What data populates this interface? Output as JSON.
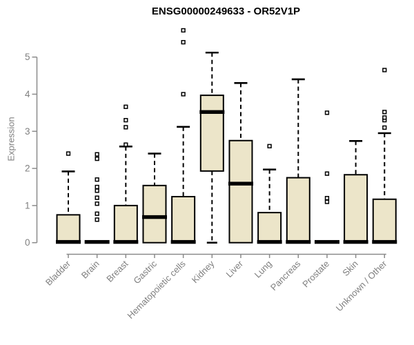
{
  "chart_data": {
    "type": "boxplot",
    "title": "ENSG00000249633 - OR52V1P",
    "xlabel": "",
    "ylabel": "Expression",
    "ylim": [
      0,
      5
    ],
    "yticks": [
      0,
      1,
      2,
      3,
      4,
      5
    ],
    "grid": false,
    "legend": "none",
    "categories": [
      "Bladder",
      "Brain",
      "Breast",
      "Gastric",
      "Hematopoietic cells",
      "Kidney",
      "Liver",
      "Lung",
      "Pancreas",
      "Prostate",
      "Skin",
      "Unknown / Other"
    ],
    "series": [
      {
        "name": "Bladder",
        "whisker_low": 0,
        "q1": 0,
        "median": 0.02,
        "q3": 0.75,
        "whisker_high": 1.92,
        "outliers": [
          2.4
        ]
      },
      {
        "name": "Brain",
        "whisker_low": 0,
        "q1": 0,
        "median": 0.02,
        "q3": 0.04,
        "whisker_high": 0.04,
        "outliers": [
          0.62,
          0.78,
          1.05,
          1.21,
          1.4,
          1.5,
          1.7,
          2.26,
          2.38
        ]
      },
      {
        "name": "Breast",
        "whisker_low": 0,
        "q1": 0,
        "median": 0.02,
        "q3": 1.0,
        "whisker_high": 2.59,
        "outliers": [
          2.64,
          3.11,
          3.3,
          3.66
        ]
      },
      {
        "name": "Gastric",
        "whisker_low": 0,
        "q1": 0,
        "median": 0.69,
        "q3": 1.54,
        "whisker_high": 2.4,
        "outliers": []
      },
      {
        "name": "Hematopoietic cells",
        "whisker_low": 0,
        "q1": 0,
        "median": 0.02,
        "q3": 1.24,
        "whisker_high": 3.12,
        "outliers": [
          4.0,
          5.4,
          5.72
        ]
      },
      {
        "name": "Kidney",
        "whisker_low": 0,
        "q1": 1.93,
        "median": 3.52,
        "q3": 3.97,
        "whisker_high": 5.12,
        "outliers": []
      },
      {
        "name": "Liver",
        "whisker_low": 0,
        "q1": 0,
        "median": 1.59,
        "q3": 2.75,
        "whisker_high": 4.3,
        "outliers": []
      },
      {
        "name": "Lung",
        "whisker_low": 0,
        "q1": 0,
        "median": 0.02,
        "q3": 0.81,
        "whisker_high": 1.97,
        "outliers": [
          2.6
        ]
      },
      {
        "name": "Pancreas",
        "whisker_low": 0,
        "q1": 0,
        "median": 0.02,
        "q3": 1.75,
        "whisker_high": 4.4,
        "outliers": []
      },
      {
        "name": "Prostate",
        "whisker_low": 0,
        "q1": 0,
        "median": 0.02,
        "q3": 0.04,
        "whisker_high": 0.04,
        "outliers": [
          1.1,
          1.2,
          1.86,
          3.5
        ]
      },
      {
        "name": "Skin",
        "whisker_low": 0,
        "q1": 0,
        "median": 0.02,
        "q3": 1.83,
        "whisker_high": 2.74,
        "outliers": []
      },
      {
        "name": "Unknown / Other",
        "whisker_low": 0,
        "q1": 0,
        "median": 0.02,
        "q3": 1.17,
        "whisker_high": 2.95,
        "outliers": [
          3.1,
          3.3,
          3.37,
          3.52,
          4.65
        ]
      }
    ],
    "colors": {
      "background": "#FFFFFF",
      "box_fill": "#ECE5C9",
      "box_stroke": "#000000",
      "median": "#000000",
      "whisker": "#000000",
      "outlier_fill": "#FFFFFF",
      "axis": "#8A8A8A",
      "tick_labels": "#7F7F7F",
      "title": "#000000"
    }
  }
}
